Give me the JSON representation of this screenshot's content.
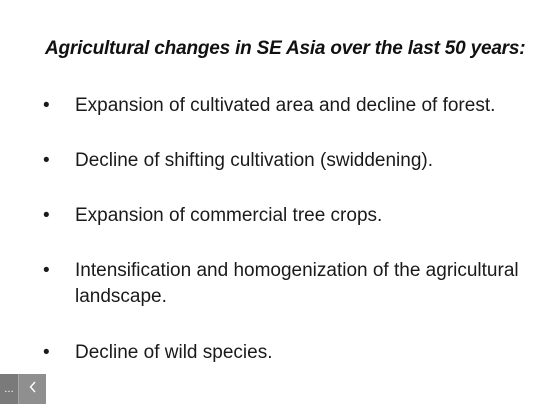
{
  "slide": {
    "title": "Agricultural changes in SE Asia over the last 50 years:",
    "bullet_symbol": "•",
    "bullets": [
      "Expansion of cultivated area and decline of forest.",
      "Decline of shifting cultivation (swiddening).",
      "Expansion of commercial tree crops.",
      "Intensification and homogenization of the agricultural landscape.",
      "Decline of wild species."
    ]
  },
  "viewer_controls": {
    "more_label": "...",
    "prev_icon": "chevron-left-icon"
  }
}
